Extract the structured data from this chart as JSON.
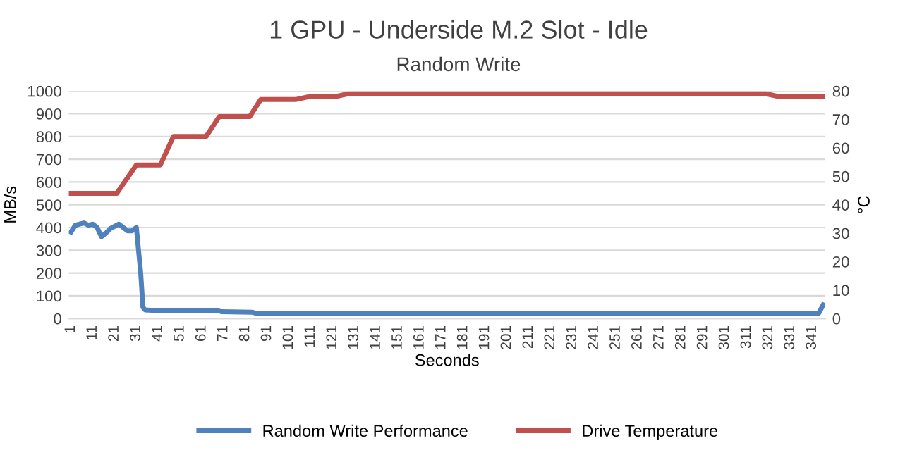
{
  "chart_data": {
    "type": "line",
    "title": "1 GPU - Underside M.2 Slot - Idle",
    "subtitle": "Random Write",
    "xlabel": "Seconds",
    "ylabel": "MB/s",
    "y2label": "°C",
    "xlim": [
      0,
      347
    ],
    "xticks": [
      1,
      11,
      21,
      31,
      41,
      51,
      61,
      71,
      81,
      91,
      101,
      111,
      121,
      131,
      141,
      151,
      161,
      171,
      181,
      191,
      201,
      211,
      221,
      231,
      241,
      251,
      261,
      271,
      281,
      291,
      301,
      311,
      321,
      331,
      341
    ],
    "ylim": [
      0,
      1000
    ],
    "yticks": [
      0,
      100,
      200,
      300,
      400,
      500,
      600,
      700,
      800,
      900,
      1000
    ],
    "y2lim": [
      0,
      80
    ],
    "y2ticks": [
      0,
      10,
      20,
      30,
      40,
      50,
      60,
      70,
      80
    ],
    "grid": "y",
    "legend": "bottom",
    "marker": "none",
    "line_style": "solid",
    "series": [
      {
        "name": "Random Write Performance",
        "color": "#4f81bd",
        "x": [
          1,
          3,
          5,
          7,
          9,
          11,
          13,
          15,
          17,
          19,
          21,
          23,
          25,
          27,
          29,
          31,
          32,
          33,
          34,
          35,
          40,
          60,
          68,
          70,
          84,
          86,
          100,
          344,
          346
        ],
        "values": [
          380,
          410,
          415,
          420,
          410,
          415,
          400,
          360,
          375,
          395,
          405,
          415,
          400,
          385,
          385,
          400,
          300,
          200,
          50,
          38,
          35,
          35,
          35,
          30,
          28,
          23,
          23,
          23,
          60
        ]
      },
      {
        "name": "Drive Temperature",
        "color": "#c0504d",
        "axis": "y2",
        "x": [
          1,
          22,
          31,
          42,
          48,
          63,
          69,
          83,
          88,
          104,
          110,
          122,
          128,
          320,
          326,
          346
        ],
        "values": [
          44,
          44,
          54,
          54,
          64,
          64,
          71,
          71,
          77,
          77,
          78,
          78,
          79,
          79,
          78,
          78
        ]
      }
    ]
  }
}
